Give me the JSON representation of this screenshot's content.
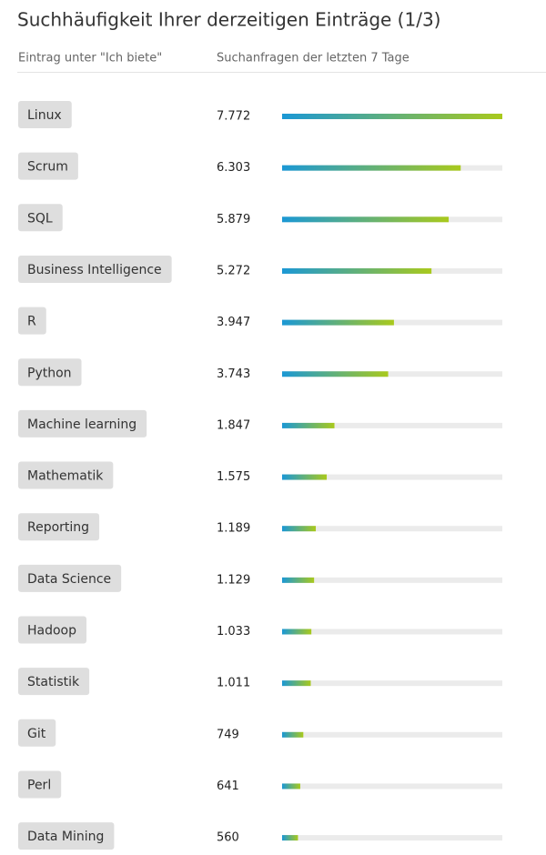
{
  "header": {
    "title": "Suchhäufigkeit Ihrer derzeitigen Einträge (1/3)",
    "columns": [
      "Eintrag unter \"Ich biete\"",
      "Suchanfragen der letzten 7 Tage"
    ]
  },
  "rows": [
    {
      "label": "Linux",
      "value": 7772,
      "value_label": "7.772"
    },
    {
      "label": "Scrum",
      "value": 6303,
      "value_label": "6.303"
    },
    {
      "label": "SQL",
      "value": 5879,
      "value_label": "5.879"
    },
    {
      "label": "Business Intelligence",
      "value": 5272,
      "value_label": "5.272"
    },
    {
      "label": "R",
      "value": 3947,
      "value_label": "3.947"
    },
    {
      "label": "Python",
      "value": 3743,
      "value_label": "3.743"
    },
    {
      "label": "Machine learning",
      "value": 1847,
      "value_label": "1.847"
    },
    {
      "label": "Mathematik",
      "value": 1575,
      "value_label": "1.575"
    },
    {
      "label": "Reporting",
      "value": 1189,
      "value_label": "1.189"
    },
    {
      "label": "Data Science",
      "value": 1129,
      "value_label": "1.129"
    },
    {
      "label": "Hadoop",
      "value": 1033,
      "value_label": "1.033"
    },
    {
      "label": "Statistik",
      "value": 1011,
      "value_label": "1.011"
    },
    {
      "label": "Git",
      "value": 749
    },
    {
      "label": "Perl",
      "value": 641
    },
    {
      "label": "Data Mining",
      "value": 560
    }
  ],
  "bar_colors": [
    "#1b98d5",
    "#a9c91c"
  ]
}
